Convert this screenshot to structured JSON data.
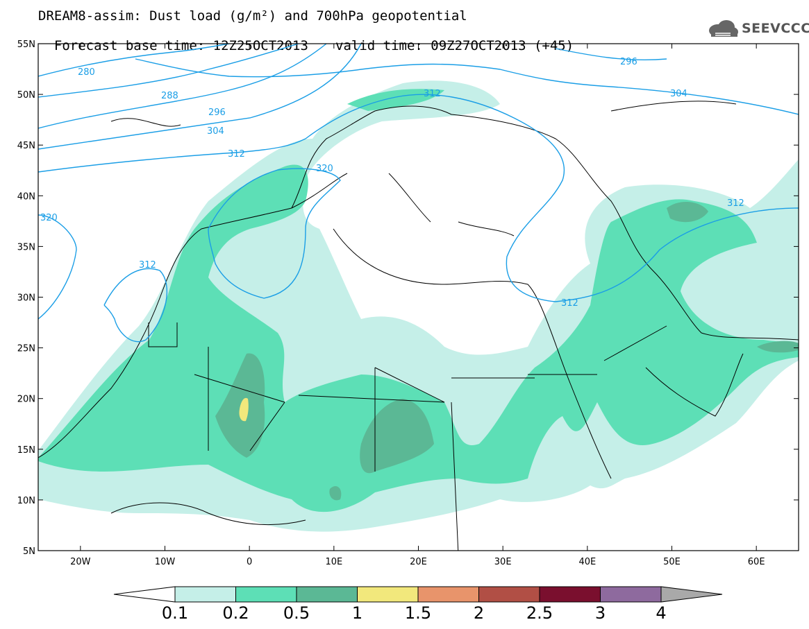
{
  "title": {
    "line1": "DREAM8-assim: Dust load (g/m²) and 700hPa geopotential",
    "line2_left": "Forecast base time: 12Z25OCT2013",
    "line2_right": "valid time: 09Z27OCT2013 (+45)"
  },
  "logo": {
    "text": "SEEVCCC",
    "icon": "cloud-icon"
  },
  "axes": {
    "lat_labels": [
      "55N",
      "50N",
      "45N",
      "40N",
      "35N",
      "30N",
      "25N",
      "20N",
      "15N",
      "10N",
      "5N"
    ],
    "lon_labels": [
      "20W",
      "10W",
      "0",
      "10E",
      "20E",
      "30E",
      "40E",
      "50E",
      "60E"
    ],
    "lat_range": [
      5,
      55
    ],
    "lon_range": [
      -25,
      65
    ]
  },
  "geopotential_contour_labels": [
    "280",
    "288",
    "296",
    "304",
    "312",
    "320",
    "312",
    "320",
    "296",
    "304",
    "312",
    "312",
    "312"
  ],
  "colorbar": {
    "labels": [
      "0.1",
      "0.2",
      "0.5",
      "1",
      "1.5",
      "2",
      "2.5",
      "3",
      "4"
    ],
    "colors": [
      "#c5efe8",
      "#5ddfb6",
      "#5bb895",
      "#f2e87c",
      "#e8946b",
      "#b14f45",
      "#7a0f2e",
      "#8e6a9e"
    ],
    "under_color": "#ffffff",
    "over_color": "#a9a9a9"
  },
  "colors": {
    "contour": "#1a9ee6"
  }
}
